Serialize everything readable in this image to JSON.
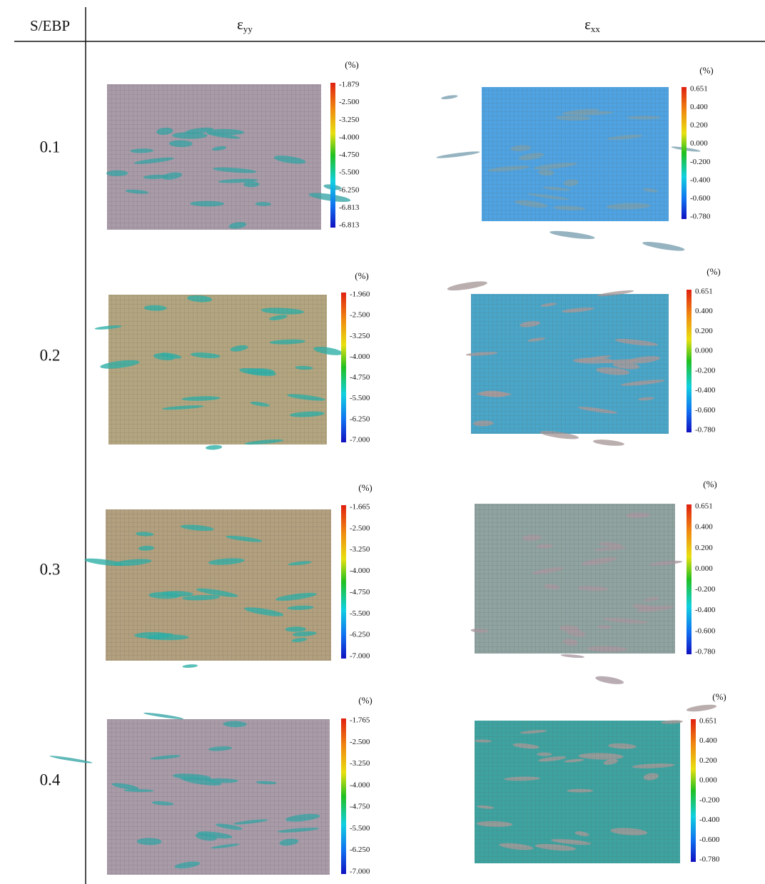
{
  "table": {
    "header": {
      "col0": "S/EBP",
      "col1": {
        "symbol": "ε",
        "subscript": "yy"
      },
      "col2": {
        "symbol": "ε",
        "subscript": "xx"
      }
    },
    "rows": [
      {
        "label": "0.1",
        "eyy": {
          "unit": "(%)",
          "ticks": [
            "-1.879",
            "-2.500",
            "-3.250",
            "-4.000",
            "-4.750",
            "-5.500",
            "-6.250",
            "-6.813",
            "-6.813"
          ]
        },
        "exx": {
          "unit": "(%)",
          "ticks": [
            "0.651",
            "0.400",
            "0.200",
            "0.000",
            "-0.200",
            "-0.400",
            "-0.600",
            "-0.780"
          ]
        }
      },
      {
        "label": "0.2",
        "eyy": {
          "unit": "(%)",
          "ticks": [
            "-1.960",
            "-2.500",
            "-3.250",
            "-4.000",
            "-4.750",
            "-5.500",
            "-6.250",
            "-7.000"
          ]
        },
        "exx": {
          "unit": "(%)",
          "ticks": [
            "0.651",
            "0.400",
            "0.200",
            "0.000",
            "-0.200",
            "-0.400",
            "-0.600",
            "-0.780"
          ]
        }
      },
      {
        "label": "0.3",
        "eyy": {
          "unit": "(%)",
          "ticks": [
            "-1.665",
            "-2.500",
            "-3.250",
            "-4.000",
            "-4.750",
            "-5.500",
            "-6.250",
            "-7.000"
          ]
        },
        "exx": {
          "unit": "(%)",
          "ticks": [
            "0.651",
            "0.400",
            "0.200",
            "0.000",
            "-0.200",
            "-0.400",
            "-0.600",
            "-0.780"
          ]
        }
      },
      {
        "label": "0.4",
        "eyy": {
          "unit": "(%)",
          "ticks": [
            "-1.765",
            "-2.500",
            "-3.250",
            "-4.000",
            "-4.750",
            "-5.500",
            "-6.250",
            "-7.000"
          ]
        },
        "exx": {
          "unit": "(%)",
          "ticks": [
            "0.651",
            "0.400",
            "0.200",
            "0.000",
            "-0.200",
            "-0.400",
            "-0.600",
            "-0.780"
          ]
        }
      }
    ]
  }
}
